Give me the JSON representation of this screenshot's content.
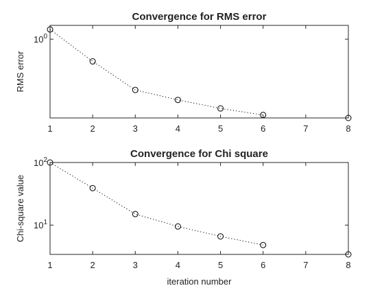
{
  "chart_data": [
    {
      "type": "scatter",
      "title": "Convergence for RMS error",
      "xlabel": "",
      "ylabel": "RMS error",
      "yscale": "log",
      "xlim": [
        1,
        8
      ],
      "ylim": [
        0.12,
        1.45
      ],
      "xticks": [
        "1",
        "2",
        "3",
        "4",
        "5",
        "6",
        "7",
        "8"
      ],
      "yticks": [
        {
          "value": 1,
          "base": "10",
          "exp": "0"
        }
      ],
      "x": [
        1,
        2,
        3,
        4,
        5,
        6,
        8
      ],
      "y": [
        1.3,
        0.55,
        0.255,
        0.195,
        0.155,
        0.13,
        0.12
      ],
      "line_through_first": 6,
      "grid": false
    },
    {
      "type": "scatter",
      "title": "Convergence for Chi square",
      "xlabel": "iteration number",
      "ylabel": "Chi-square value",
      "yscale": "log",
      "xlim": [
        1,
        8
      ],
      "ylim": [
        3.4,
        100
      ],
      "xticks": [
        "1",
        "2",
        "3",
        "4",
        "5",
        "6",
        "7",
        "8"
      ],
      "yticks": [
        {
          "value": 100,
          "base": "10",
          "exp": "2"
        },
        {
          "value": 10,
          "base": "10",
          "exp": "1"
        }
      ],
      "x": [
        1,
        2,
        3,
        4,
        5,
        6,
        8
      ],
      "y": [
        100,
        39,
        15,
        9.5,
        6.6,
        4.8,
        3.4
      ],
      "line_through_first": 6,
      "grid": false
    }
  ]
}
